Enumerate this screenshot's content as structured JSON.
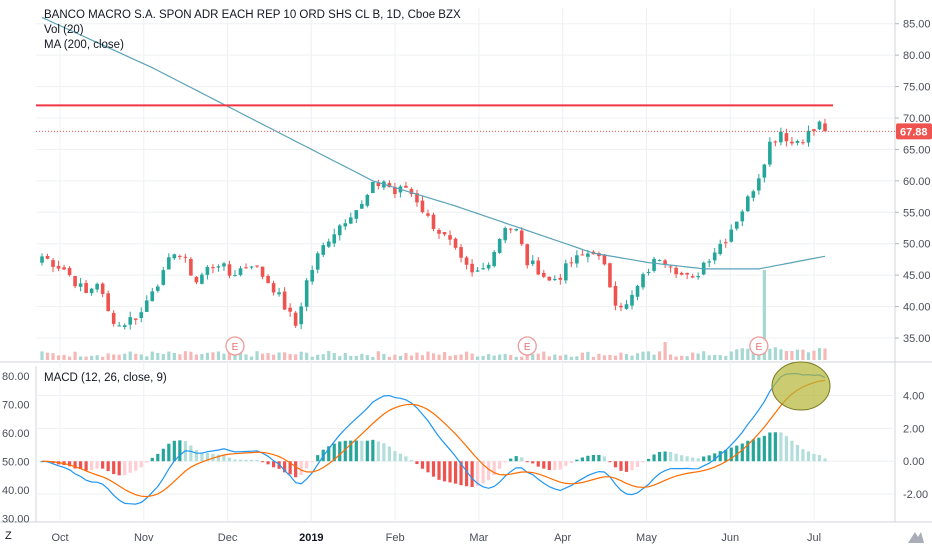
{
  "header": {
    "symbol_line": "BANCO MACRO S.A. SPON ADR EACH REP 10 ORD SHS CL B, 1D, Cboe BZX",
    "indicator_vol": "Vol (20)",
    "indicator_ma": "MA (200, close)"
  },
  "macd_panel": {
    "label": "MACD (12, 26, close, 9)"
  },
  "corner": {
    "timezone_label": "Z"
  },
  "colors": {
    "up": "#26a69a",
    "down": "#ef5350",
    "ma_line": "#5aa3b8",
    "resistance": "#f23645",
    "macd_line": "#2196f3",
    "signal_line": "#ff6d00",
    "highlight_fill": "#b5b536",
    "price_badge": "#ef5350"
  },
  "chart_data": [
    {
      "type": "candlestick",
      "title": "BANCO MACRO S.A. SPON ADR EACH REP 10 ORD SHS CL B, 1D, Cboe BZX",
      "x_ticks": [
        "Oct",
        "Nov",
        "Dec",
        "2019",
        "Feb",
        "Mar",
        "Apr",
        "May",
        "Jun",
        "Jul"
      ],
      "y_ticks": [
        "85.00",
        "80.00",
        "75.00",
        "70.00",
        "65.00",
        "60.00",
        "55.00",
        "50.00",
        "45.00",
        "40.00",
        "35.00"
      ],
      "ylim": [
        31.5,
        87.5
      ],
      "last_price_label": "67.88",
      "last_price": 67.88,
      "resistance_level": 72.0,
      "earnings_markers": [
        "E",
        "E",
        "E"
      ],
      "earnings_positions": [
        35,
        88,
        130
      ],
      "close_path": [
        [
          0,
          48
        ],
        [
          4,
          46
        ],
        [
          6,
          44
        ],
        [
          8,
          42
        ],
        [
          10,
          44
        ],
        [
          12,
          39
        ],
        [
          14,
          37
        ],
        [
          16,
          38
        ],
        [
          18,
          39
        ],
        [
          20,
          43
        ],
        [
          22,
          45
        ],
        [
          24,
          49
        ],
        [
          26,
          47
        ],
        [
          28,
          44
        ],
        [
          30,
          46
        ],
        [
          32,
          47
        ],
        [
          34,
          45
        ],
        [
          36,
          46
        ],
        [
          38,
          47
        ],
        [
          40,
          45
        ],
        [
          42,
          43
        ],
        [
          44,
          40
        ],
        [
          46,
          37
        ],
        [
          48,
          44
        ],
        [
          50,
          48
        ],
        [
          52,
          51
        ],
        [
          54,
          53
        ],
        [
          56,
          55
        ],
        [
          58,
          56
        ],
        [
          60,
          59
        ],
        [
          62,
          60
        ],
        [
          64,
          58
        ],
        [
          66,
          59
        ],
        [
          68,
          57
        ],
        [
          70,
          54
        ],
        [
          72,
          52
        ],
        [
          74,
          50
        ],
        [
          76,
          47
        ],
        [
          78,
          45
        ],
        [
          80,
          46
        ],
        [
          82,
          49
        ],
        [
          84,
          53
        ],
        [
          86,
          52
        ],
        [
          88,
          47
        ],
        [
          90,
          46
        ],
        [
          92,
          44
        ],
        [
          94,
          45
        ],
        [
          96,
          47
        ],
        [
          98,
          48
        ],
        [
          100,
          49
        ],
        [
          102,
          46
        ],
        [
          104,
          41
        ],
        [
          106,
          40
        ],
        [
          108,
          43
        ],
        [
          110,
          46
        ],
        [
          112,
          48
        ],
        [
          114,
          47
        ],
        [
          116,
          45
        ],
        [
          118,
          44
        ],
        [
          120,
          47
        ],
        [
          122,
          49
        ],
        [
          124,
          51
        ],
        [
          126,
          54
        ],
        [
          128,
          57
        ],
        [
          130,
          61
        ],
        [
          132,
          66
        ],
        [
          134,
          68
        ],
        [
          136,
          66
        ],
        [
          138,
          67
        ],
        [
          140,
          68
        ],
        [
          141,
          69
        ],
        [
          142,
          67.88
        ]
      ],
      "ma200_path": [
        [
          0,
          86
        ],
        [
          20,
          78
        ],
        [
          40,
          69
        ],
        [
          60,
          60
        ],
        [
          75,
          56
        ],
        [
          90,
          51.5
        ],
        [
          100,
          48.5
        ],
        [
          110,
          47
        ],
        [
          120,
          46
        ],
        [
          130,
          46
        ],
        [
          142,
          48
        ]
      ],
      "bar_count": 143
    },
    {
      "type": "line",
      "title": "MACD (12, 26, close, 9)",
      "y_ticks": [
        "4.00",
        "2.00",
        "0.00",
        "-2.00"
      ],
      "ylim": [
        -3.7,
        5.8
      ],
      "series": [
        {
          "name": "MACD",
          "values": []
        },
        {
          "name": "Signal",
          "values": []
        }
      ],
      "note_left_axis": [
        "80.00",
        "70.00",
        "60.00",
        "50.00",
        "40.00",
        "30.00"
      ]
    }
  ]
}
